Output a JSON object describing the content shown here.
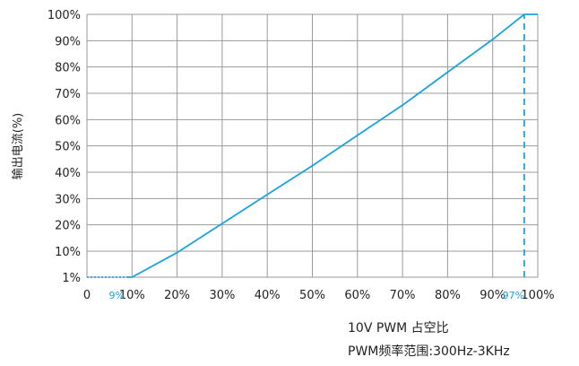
{
  "chart_data": {
    "type": "line",
    "ylabel": "输出电流(%)",
    "xlim": [
      0,
      100
    ],
    "ylim": [
      0,
      100
    ],
    "grid": true,
    "x_ticks": [
      {
        "value": 0,
        "label": "0"
      },
      {
        "value": 10,
        "label": "10%"
      },
      {
        "value": 20,
        "label": "20%"
      },
      {
        "value": 30,
        "label": "30%"
      },
      {
        "value": 40,
        "label": "40%"
      },
      {
        "value": 50,
        "label": "50%"
      },
      {
        "value": 60,
        "label": "60%"
      },
      {
        "value": 70,
        "label": "70%"
      },
      {
        "value": 80,
        "label": "80%"
      },
      {
        "value": 90,
        "label": "90%"
      },
      {
        "value": 100,
        "label": "100%"
      }
    ],
    "x_markers": [
      {
        "value": 9,
        "label": "9%"
      },
      {
        "value": 97,
        "label": "97%"
      }
    ],
    "y_ticks": [
      {
        "value": 1,
        "label": "1%"
      },
      {
        "value": 10,
        "label": "10%"
      },
      {
        "value": 20,
        "label": "20%"
      },
      {
        "value": 30,
        "label": "30%"
      },
      {
        "value": 40,
        "label": "40%"
      },
      {
        "value": 50,
        "label": "50%"
      },
      {
        "value": 60,
        "label": "60%"
      },
      {
        "value": 70,
        "label": "70%"
      },
      {
        "value": 80,
        "label": "80%"
      },
      {
        "value": 90,
        "label": "90%"
      },
      {
        "value": 100,
        "label": "100%"
      }
    ],
    "series": [
      {
        "style": "solid",
        "x": [
          9,
          10,
          20,
          30,
          40,
          50,
          60,
          70,
          80,
          90,
          97,
          100
        ],
        "y": [
          1,
          1,
          9.5,
          20.5,
          31.5,
          42.5,
          54,
          65.5,
          78,
          90.5,
          100,
          100
        ]
      },
      {
        "style": "dotted",
        "x": [
          0,
          9
        ],
        "y": [
          1,
          1
        ]
      },
      {
        "style": "dashed",
        "x": [
          97,
          97
        ],
        "y": [
          0,
          100
        ]
      }
    ],
    "line_color": "#1aa3dd",
    "grid_color": "#999999"
  },
  "captions": {
    "line1": "10V PWM 占空比",
    "line2": "PWM频率范围:300Hz-3KHz"
  }
}
